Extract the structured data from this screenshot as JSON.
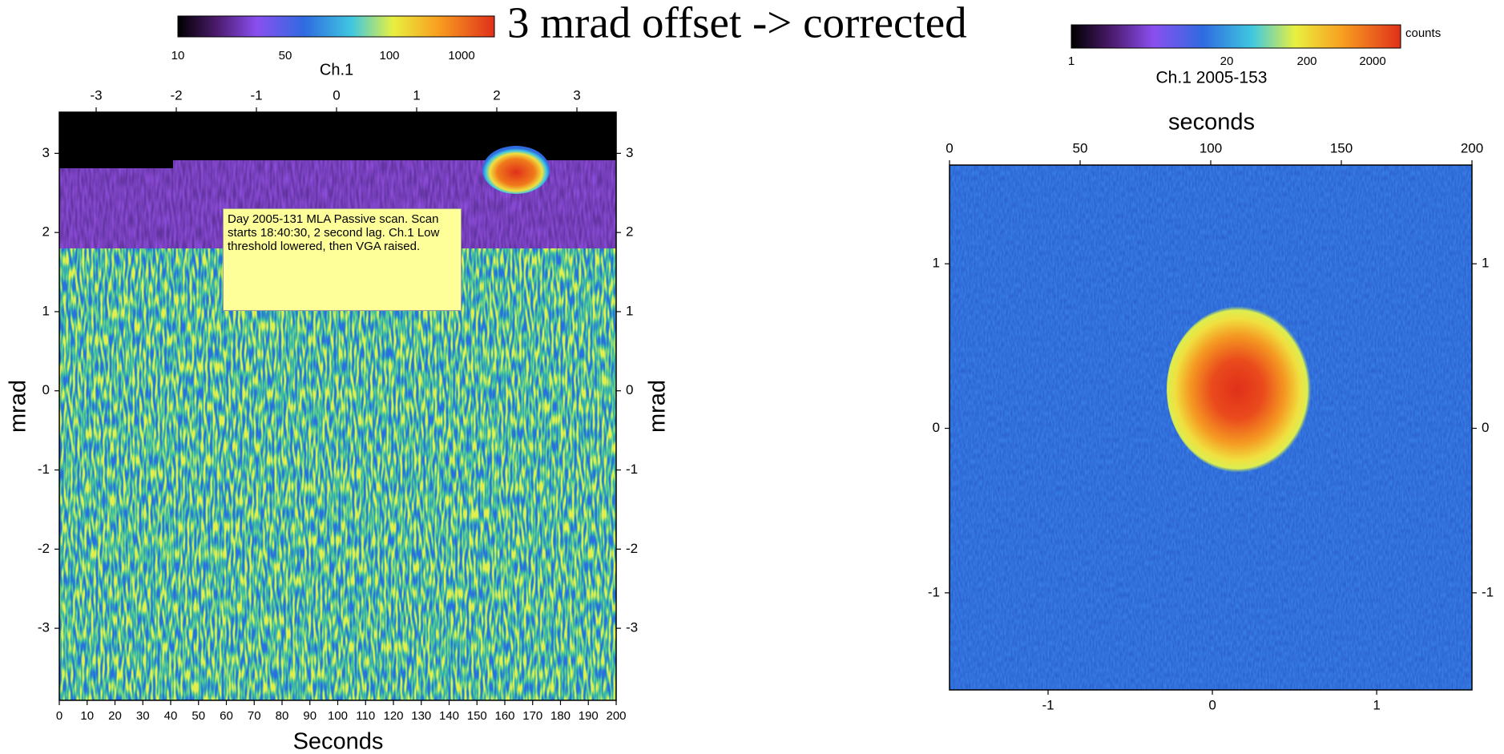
{
  "title": "3 mrad offset -> corrected",
  "chart_data": [
    {
      "type": "heatmap",
      "colorbar": {
        "label": "Ch.1",
        "ticks": [
          10,
          50,
          100,
          1000
        ]
      },
      "xlabel": "Seconds",
      "ylabel": "mrad",
      "y2label": "mrad",
      "xlim": [
        0,
        200
      ],
      "xticks": [
        0,
        10,
        20,
        30,
        40,
        50,
        60,
        70,
        80,
        90,
        100,
        110,
        120,
        130,
        140,
        150,
        160,
        170,
        180,
        190,
        200
      ],
      "x2lim": [
        -3.46,
        3.49
      ],
      "x2ticks": [
        -3,
        -2,
        -1,
        0,
        1,
        2,
        3
      ],
      "ylim": [
        -3.91,
        3.52
      ],
      "yticks": [
        -3,
        -2,
        -1,
        0,
        1,
        2,
        3
      ],
      "y2ticks": [
        -3,
        -2,
        -1,
        0,
        1,
        2,
        3
      ],
      "annotation": "Day 2005-131 MLA  Passive scan. Scan starts 18:40:30, 2 second lag. Ch.1 Low threshold lowered, then VGA raised."
    },
    {
      "type": "heatmap",
      "colorbar": {
        "label": "counts",
        "title": "Ch.1 2005-153",
        "ticks": [
          1,
          20,
          200,
          2000
        ]
      },
      "x2label": "seconds",
      "xlim": [
        -1.6,
        1.58
      ],
      "xticks": [
        -1,
        0,
        1
      ],
      "x2lim": [
        0,
        200
      ],
      "x2ticks": [
        0,
        50,
        100,
        150,
        200
      ],
      "ylim": [
        -1.59,
        1.6
      ],
      "yticks": [
        -1,
        0,
        1
      ],
      "y2ticks": [
        -1,
        0,
        1
      ]
    }
  ]
}
